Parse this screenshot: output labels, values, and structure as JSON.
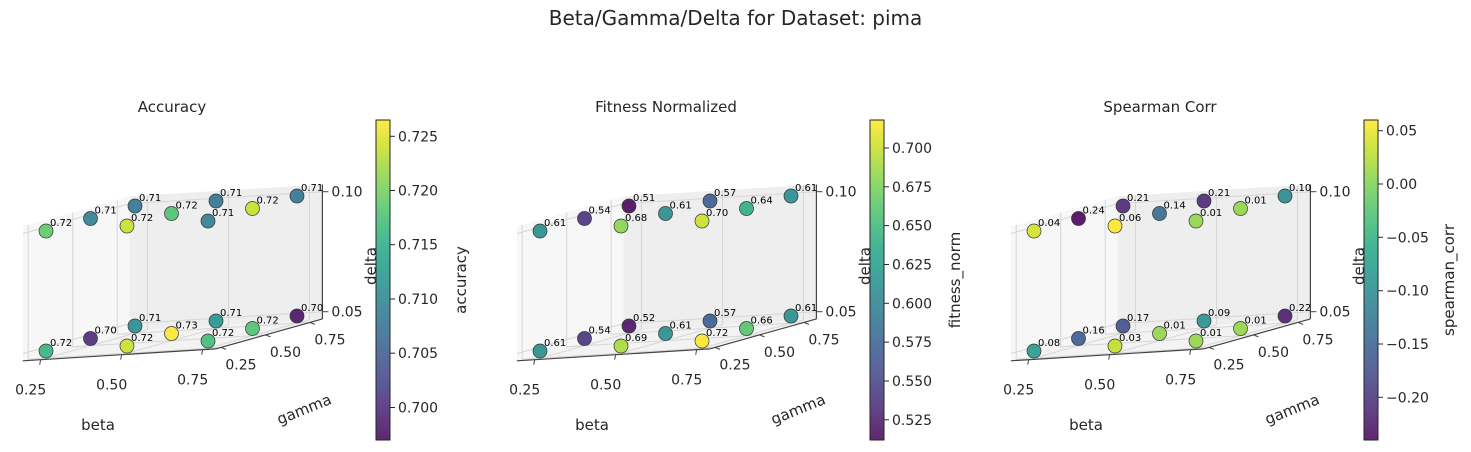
{
  "suptitle": "Beta/Gamma/Delta for Dataset: pima",
  "chart_data": [
    {
      "type": "scatter",
      "projection": "3d",
      "title": "Accuracy",
      "xlabel": "beta",
      "ylabel": "gamma",
      "zlabel": "delta",
      "x_ticks": [
        "0.25",
        "0.50",
        "0.75"
      ],
      "y_ticks": [
        "0.25",
        "0.50",
        "0.75"
      ],
      "z_ticks": [
        "0.05",
        "0.10"
      ],
      "colorbar": {
        "label": "accuracy",
        "colormap": "viridis",
        "range": [
          0.697,
          0.7265
        ],
        "ticks": [
          "0.700",
          "0.705",
          "0.710",
          "0.715",
          "0.720",
          "0.725"
        ]
      },
      "points": [
        {
          "beta": 0.25,
          "gamma": 0.25,
          "delta": 0.1,
          "value": 0.719,
          "label": "0.72"
        },
        {
          "beta": 0.25,
          "gamma": 0.5,
          "delta": 0.1,
          "value": 0.709,
          "label": "0.71"
        },
        {
          "beta": 0.25,
          "gamma": 0.75,
          "delta": 0.1,
          "value": 0.708,
          "label": "0.71"
        },
        {
          "beta": 0.5,
          "gamma": 0.25,
          "delta": 0.1,
          "value": 0.724,
          "label": "0.72"
        },
        {
          "beta": 0.5,
          "gamma": 0.5,
          "delta": 0.1,
          "value": 0.718,
          "label": "0.72"
        },
        {
          "beta": 0.5,
          "gamma": 0.75,
          "delta": 0.1,
          "value": 0.708,
          "label": "0.71"
        },
        {
          "beta": 0.75,
          "gamma": 0.25,
          "delta": 0.1,
          "value": 0.709,
          "label": "0.71"
        },
        {
          "beta": 0.75,
          "gamma": 0.5,
          "delta": 0.1,
          "value": 0.724,
          "label": "0.72"
        },
        {
          "beta": 0.75,
          "gamma": 0.75,
          "delta": 0.1,
          "value": 0.708,
          "label": "0.71"
        },
        {
          "beta": 0.25,
          "gamma": 0.25,
          "delta": 0.05,
          "value": 0.716,
          "label": "0.72"
        },
        {
          "beta": 0.25,
          "gamma": 0.5,
          "delta": 0.05,
          "value": 0.7,
          "label": "0.70"
        },
        {
          "beta": 0.25,
          "gamma": 0.75,
          "delta": 0.05,
          "value": 0.711,
          "label": "0.71"
        },
        {
          "beta": 0.5,
          "gamma": 0.25,
          "delta": 0.05,
          "value": 0.724,
          "label": "0.72"
        },
        {
          "beta": 0.5,
          "gamma": 0.5,
          "delta": 0.05,
          "value": 0.7265,
          "label": "0.73"
        },
        {
          "beta": 0.5,
          "gamma": 0.75,
          "delta": 0.05,
          "value": 0.712,
          "label": "0.71"
        },
        {
          "beta": 0.75,
          "gamma": 0.25,
          "delta": 0.05,
          "value": 0.717,
          "label": "0.72"
        },
        {
          "beta": 0.75,
          "gamma": 0.5,
          "delta": 0.05,
          "value": 0.718,
          "label": "0.72"
        },
        {
          "beta": 0.75,
          "gamma": 0.75,
          "delta": 0.05,
          "value": 0.698,
          "label": "0.70"
        }
      ]
    },
    {
      "type": "scatter",
      "projection": "3d",
      "title": "Fitness Normalized",
      "xlabel": "beta",
      "ylabel": "gamma",
      "zlabel": "delta",
      "x_ticks": [
        "0.25",
        "0.50",
        "0.75"
      ],
      "y_ticks": [
        "0.25",
        "0.50",
        "0.75"
      ],
      "z_ticks": [
        "0.05",
        "0.10"
      ],
      "colorbar": {
        "label": "fitness_norm",
        "colormap": "viridis",
        "range": [
          0.512,
          0.718
        ],
        "ticks": [
          "0.525",
          "0.550",
          "0.575",
          "0.600",
          "0.625",
          "0.650",
          "0.675",
          "0.700"
        ]
      },
      "points": [
        {
          "beta": 0.25,
          "gamma": 0.25,
          "delta": 0.1,
          "value": 0.61,
          "label": "0.61"
        },
        {
          "beta": 0.25,
          "gamma": 0.5,
          "delta": 0.1,
          "value": 0.54,
          "label": "0.54"
        },
        {
          "beta": 0.25,
          "gamma": 0.75,
          "delta": 0.1,
          "value": 0.513,
          "label": "0.51"
        },
        {
          "beta": 0.5,
          "gamma": 0.25,
          "delta": 0.1,
          "value": 0.68,
          "label": "0.68"
        },
        {
          "beta": 0.5,
          "gamma": 0.5,
          "delta": 0.1,
          "value": 0.61,
          "label": "0.61"
        },
        {
          "beta": 0.5,
          "gamma": 0.75,
          "delta": 0.1,
          "value": 0.57,
          "label": "0.57"
        },
        {
          "beta": 0.75,
          "gamma": 0.25,
          "delta": 0.1,
          "value": 0.702,
          "label": "0.70"
        },
        {
          "beta": 0.75,
          "gamma": 0.5,
          "delta": 0.1,
          "value": 0.64,
          "label": "0.64"
        },
        {
          "beta": 0.75,
          "gamma": 0.75,
          "delta": 0.1,
          "value": 0.61,
          "label": "0.61"
        },
        {
          "beta": 0.25,
          "gamma": 0.25,
          "delta": 0.05,
          "value": 0.61,
          "label": "0.61"
        },
        {
          "beta": 0.25,
          "gamma": 0.5,
          "delta": 0.05,
          "value": 0.54,
          "label": "0.54"
        },
        {
          "beta": 0.25,
          "gamma": 0.75,
          "delta": 0.05,
          "value": 0.52,
          "label": "0.52"
        },
        {
          "beta": 0.5,
          "gamma": 0.25,
          "delta": 0.05,
          "value": 0.69,
          "label": "0.69"
        },
        {
          "beta": 0.5,
          "gamma": 0.5,
          "delta": 0.05,
          "value": 0.61,
          "label": "0.61"
        },
        {
          "beta": 0.5,
          "gamma": 0.75,
          "delta": 0.05,
          "value": 0.57,
          "label": "0.57"
        },
        {
          "beta": 0.75,
          "gamma": 0.25,
          "delta": 0.05,
          "value": 0.718,
          "label": "0.72"
        },
        {
          "beta": 0.75,
          "gamma": 0.5,
          "delta": 0.05,
          "value": 0.66,
          "label": "0.66"
        },
        {
          "beta": 0.75,
          "gamma": 0.75,
          "delta": 0.05,
          "value": 0.61,
          "label": "0.61"
        }
      ]
    },
    {
      "type": "scatter",
      "projection": "3d",
      "title": "Spearman Corr",
      "xlabel": "beta",
      "ylabel": "gamma",
      "zlabel": "delta",
      "x_ticks": [
        "0.25",
        "0.50",
        "0.75"
      ],
      "y_ticks": [
        "0.25",
        "0.50",
        "0.75"
      ],
      "z_ticks": [
        "0.05",
        "0.10"
      ],
      "colorbar": {
        "label": "spearman_corr",
        "colormap": "viridis",
        "range": [
          -0.24,
          0.06
        ],
        "ticks": [
          "−0.20",
          "−0.15",
          "−0.10",
          "−0.05",
          "0.00",
          "0.05"
        ]
      },
      "points": [
        {
          "beta": 0.25,
          "gamma": 0.25,
          "delta": 0.1,
          "value": 0.04,
          "label": "0.04"
        },
        {
          "beta": 0.25,
          "gamma": 0.5,
          "delta": 0.1,
          "value": -0.24,
          "label": "0.24"
        },
        {
          "beta": 0.25,
          "gamma": 0.75,
          "delta": 0.1,
          "value": -0.21,
          "label": "0.21"
        },
        {
          "beta": 0.5,
          "gamma": 0.25,
          "delta": 0.1,
          "value": 0.06,
          "label": "0.06"
        },
        {
          "beta": 0.5,
          "gamma": 0.5,
          "delta": 0.1,
          "value": -0.14,
          "label": "0.14"
        },
        {
          "beta": 0.5,
          "gamma": 0.75,
          "delta": 0.1,
          "value": -0.21,
          "label": "0.21"
        },
        {
          "beta": 0.75,
          "gamma": 0.25,
          "delta": 0.1,
          "value": 0.01,
          "label": "0.01"
        },
        {
          "beta": 0.75,
          "gamma": 0.5,
          "delta": 0.1,
          "value": 0.01,
          "label": "0.01"
        },
        {
          "beta": 0.75,
          "gamma": 0.75,
          "delta": 0.1,
          "value": -0.1,
          "label": "0.10"
        },
        {
          "beta": 0.25,
          "gamma": 0.25,
          "delta": 0.05,
          "value": -0.08,
          "label": "0.08"
        },
        {
          "beta": 0.25,
          "gamma": 0.5,
          "delta": 0.05,
          "value": -0.16,
          "label": "0.16"
        },
        {
          "beta": 0.25,
          "gamma": 0.75,
          "delta": 0.05,
          "value": -0.17,
          "label": "0.17"
        },
        {
          "beta": 0.5,
          "gamma": 0.25,
          "delta": 0.05,
          "value": 0.03,
          "label": "0.03"
        },
        {
          "beta": 0.5,
          "gamma": 0.5,
          "delta": 0.05,
          "value": 0.01,
          "label": "0.01"
        },
        {
          "beta": 0.5,
          "gamma": 0.75,
          "delta": 0.05,
          "value": -0.09,
          "label": "0.09"
        },
        {
          "beta": 0.75,
          "gamma": 0.25,
          "delta": 0.05,
          "value": 0.01,
          "label": "0.01"
        },
        {
          "beta": 0.75,
          "gamma": 0.5,
          "delta": 0.05,
          "value": 0.01,
          "label": "0.01"
        },
        {
          "beta": 0.75,
          "gamma": 0.75,
          "delta": 0.05,
          "value": -0.22,
          "label": "0.22"
        }
      ]
    }
  ]
}
